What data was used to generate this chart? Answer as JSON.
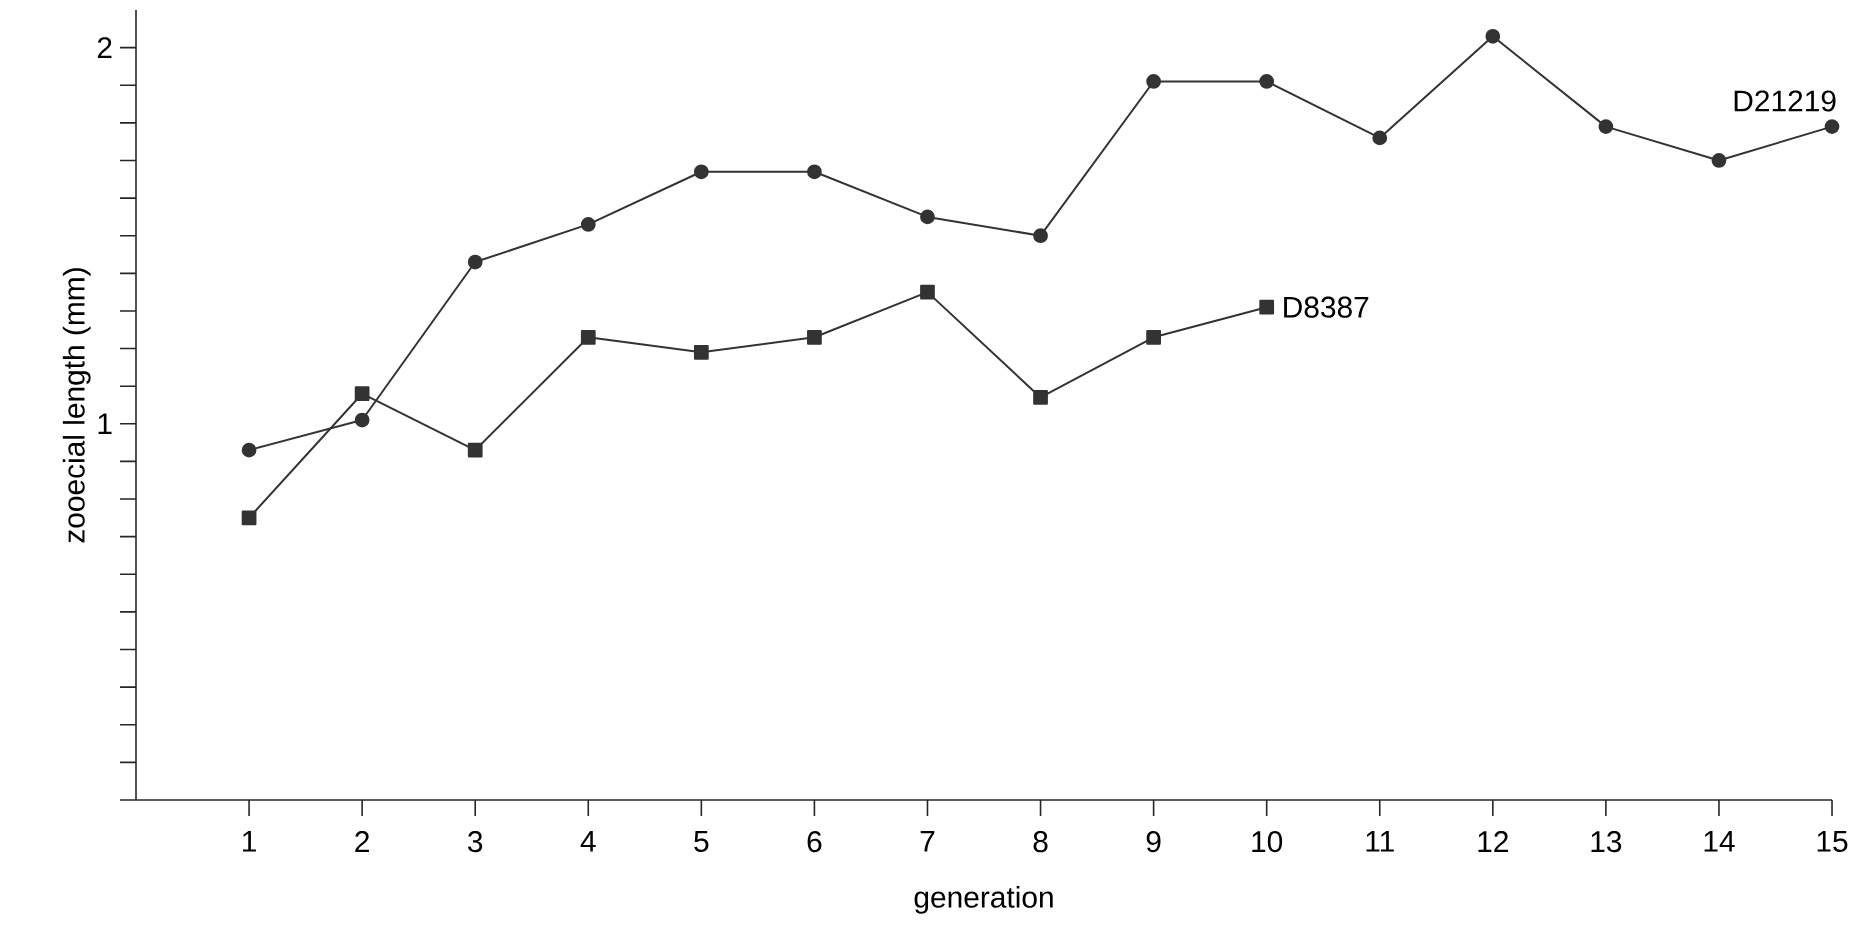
{
  "chart_data": {
    "type": "line",
    "xlabel": "generation",
    "ylabel": "zooecial length (mm)",
    "x": [
      1,
      2,
      3,
      4,
      5,
      6,
      7,
      8,
      9,
      10,
      11,
      12,
      13,
      14,
      15
    ],
    "series": [
      {
        "name": "D21219",
        "color": "#333333",
        "marker": "circle",
        "values": [
          0.93,
          1.01,
          1.43,
          1.53,
          1.67,
          1.67,
          1.55,
          1.5,
          1.91,
          1.91,
          1.76,
          2.03,
          1.79,
          1.7,
          1.79
        ]
      },
      {
        "name": "D8387",
        "color": "#333333",
        "marker": "square",
        "values": [
          0.75,
          1.08,
          0.93,
          1.23,
          1.19,
          1.23,
          1.35,
          1.07,
          1.23,
          1.31,
          null,
          null,
          null,
          null,
          null
        ]
      }
    ],
    "xlim": [
      0,
      15
    ],
    "xticks": [
      1,
      2,
      3,
      4,
      5,
      6,
      7,
      8,
      9,
      10,
      11,
      12,
      13,
      14,
      15
    ],
    "ylim": [
      0,
      2.1
    ],
    "yticks": [
      {
        "value": 0,
        "label": null
      },
      {
        "value": 0.1,
        "label": null
      },
      {
        "value": 0.2,
        "label": null
      },
      {
        "value": 0.3,
        "label": null
      },
      {
        "value": 0.4,
        "label": null
      },
      {
        "value": 0.5,
        "label": null
      },
      {
        "value": 0.6,
        "label": null
      },
      {
        "value": 0.7,
        "label": null
      },
      {
        "value": 0.8,
        "label": null
      },
      {
        "value": 0.9,
        "label": null
      },
      1,
      {
        "value": 1.1,
        "label": null
      },
      {
        "value": 1.2,
        "label": null
      },
      {
        "value": 1.3,
        "label": null
      },
      {
        "value": 1.4,
        "label": null
      },
      {
        "value": 1.5,
        "label": null
      },
      {
        "value": 1.6,
        "label": null
      },
      {
        "value": 1.7,
        "label": null
      },
      {
        "value": 1.8,
        "label": null
      },
      {
        "value": 1.9,
        "label": null
      },
      2
    ],
    "grid": false,
    "legend": false,
    "line_style": "solid"
  }
}
